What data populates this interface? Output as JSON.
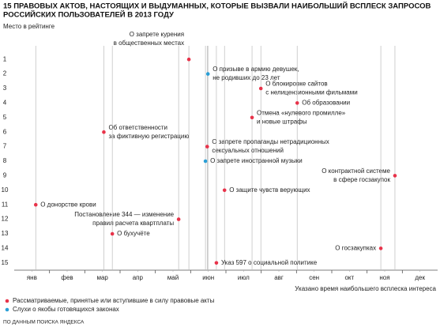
{
  "chart_data": {
    "type": "scatter",
    "title": [
      "15 ПРАВОВЫХ АКТОВ, НАСТОЯЩИХ И ВЫДУМАННЫХ, КОТОРЫЕ ВЫЗВАЛИ НАИБОЛЬШИЙ ВСПЛЕСК ЗАПРОСОВ",
      "РОССИЙСКИХ ПОЛЬЗОВАТЕЛЕЙ В 2013 ГОДУ"
    ],
    "y_label": "Место в рейтинге",
    "x_label": "Указано время наибольшего всплеска интереса",
    "source": "ПО ДАННЫМ ПОИСКА ЯНДЕКСА",
    "xlim": [
      0.5,
      12.5
    ],
    "xticks": [
      {
        "value": 1,
        "label": "янв"
      },
      {
        "value": 2,
        "label": "фев"
      },
      {
        "value": 3,
        "label": "мар"
      },
      {
        "value": 4,
        "label": "апр"
      },
      {
        "value": 5,
        "label": "май"
      },
      {
        "value": 6,
        "label": "июн"
      },
      {
        "value": 7,
        "label": "июл"
      },
      {
        "value": 8,
        "label": "авг"
      },
      {
        "value": 9,
        "label": "сен"
      },
      {
        "value": 10,
        "label": "окт"
      },
      {
        "value": 11,
        "label": "ноя"
      },
      {
        "value": 12,
        "label": "дек"
      }
    ],
    "ylim": [
      15.5,
      0.5
    ],
    "yticks": [
      1,
      2,
      3,
      4,
      5,
      6,
      7,
      8,
      9,
      10,
      11,
      12,
      13,
      14,
      15
    ],
    "series": [
      {
        "name": "Рассматриваемые, принятые или вступившие в силу правовые акты",
        "color": "#e8334a",
        "x": [
          5.45,
          7.49,
          8.52,
          7.24,
          3.04,
          5.97,
          11.29,
          6.46,
          1.11,
          5.16,
          3.28,
          10.89,
          6.23
        ],
        "values": [
          1,
          3,
          4,
          5,
          6,
          7,
          9,
          10,
          11,
          12,
          13,
          14,
          15
        ],
        "labels": [
          [
            "О запрете курения",
            "в общественных местах"
          ],
          [
            "О блокировке сайтов",
            "с нелицензионными фильмами"
          ],
          [
            "Об образовании"
          ],
          [
            "Отмена «нулевого промилле»",
            "и новые штрафы"
          ],
          [
            "Об ответственности",
            "за фиктивную регистрацию"
          ],
          [
            "О запрете пропаганды нетрадиционных",
            "сексуальных отношений"
          ],
          [
            "О контрактной системе",
            "в сфере госзакупок"
          ],
          [
            "О защите чувств верующих"
          ],
          [
            "О донорстве крови"
          ],
          [
            "Постановление 344 — изменение",
            "правил расчета квартплаты"
          ],
          [
            "О бухучёте"
          ],
          [
            "О госзакупках"
          ],
          [
            "Указ 597 о социальной политике"
          ]
        ]
      },
      {
        "name": "Слухи о якобы готовящихся законах",
        "color": "#2a9fd6",
        "x": [
          5.99,
          5.92
        ],
        "values": [
          2,
          8
        ],
        "labels": [
          [
            "О призыве в армию девушек,",
            "не родивших до 23 лет"
          ],
          [
            "О запрете иностранной музыки"
          ]
        ]
      }
    ]
  }
}
